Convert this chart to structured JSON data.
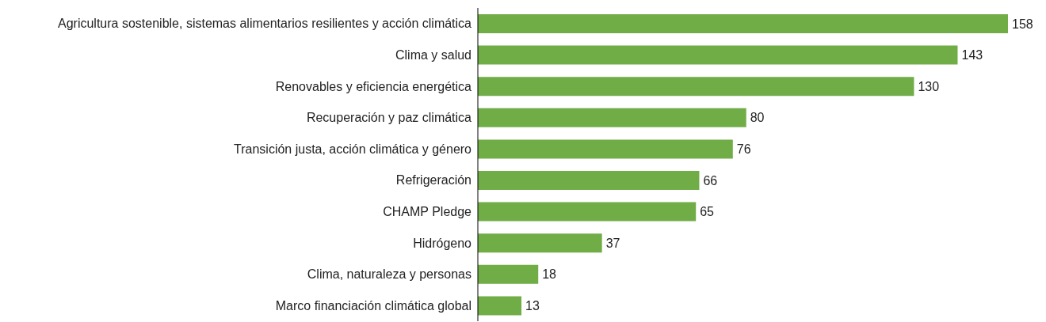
{
  "chart_data": {
    "type": "bar",
    "orientation": "horizontal",
    "categories": [
      "Agricultura sostenible, sistemas alimentarios resilientes y acción climática",
      "Clima y salud",
      "Renovables y eficiencia energética",
      "Recuperación y paz climática",
      "Transición justa, acción climática y género",
      "Refrigeración",
      "CHAMP Pledge",
      "Hidrógeno",
      "Clima, naturaleza y personas",
      "Marco financiación climática global"
    ],
    "values": [
      158,
      143,
      130,
      80,
      76,
      66,
      65,
      37,
      18,
      13
    ],
    "color": "#70ad47",
    "data_labels": true
  }
}
